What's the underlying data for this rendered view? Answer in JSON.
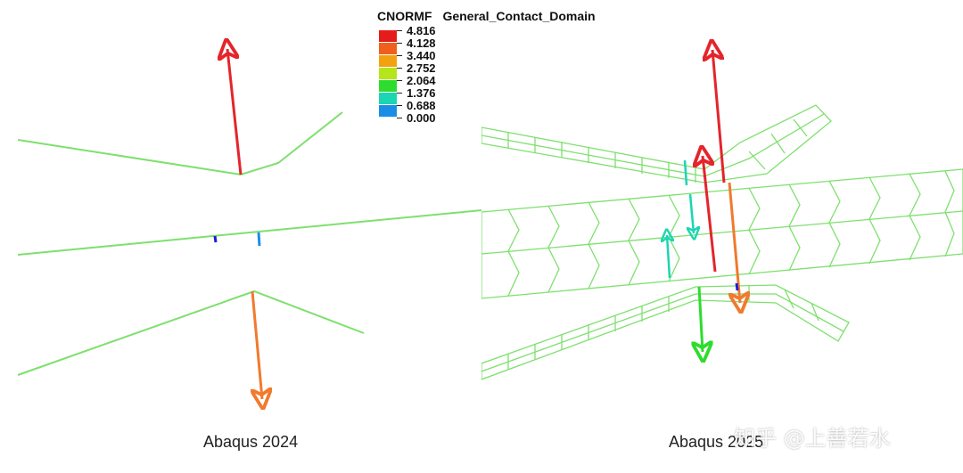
{
  "legend": {
    "variable": "CNORMF",
    "domain": "General_Contact_Domain",
    "entries": [
      {
        "value": "4.816",
        "color": "#e51c1c"
      },
      {
        "value": "4.128",
        "color": "#f0601c"
      },
      {
        "value": "3.440",
        "color": "#f2a20e"
      },
      {
        "value": "2.752",
        "color": "#b4e61a"
      },
      {
        "value": "2.064",
        "color": "#2edc2e"
      },
      {
        "value": "1.376",
        "color": "#1ad6b2"
      },
      {
        "value": "0.688",
        "color": "#1a8ee6"
      },
      {
        "value": "0.000",
        "color": "#1c1cd6"
      }
    ]
  },
  "views": {
    "left_caption": "Abaqus 2024",
    "right_caption": "Abaqus 2025"
  },
  "colors": {
    "mesh": "#7ee06e",
    "arrow_red": "#e5242b",
    "arrow_orange": "#f07a2e",
    "arrow_green": "#2edc2e",
    "arrow_cyan": "#1ad6b2",
    "arrow_blue": "#1a8ee6"
  },
  "watermark": "知乎 @上善若水"
}
